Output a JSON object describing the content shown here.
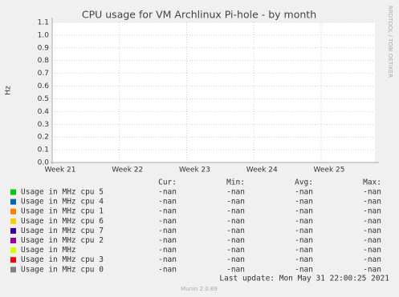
{
  "chart_data": {
    "type": "line",
    "title": "CPU usage for VM Archlinux Pi-hole - by month",
    "y_label": "Hz",
    "side_text": "RRDTOOL / TOBI OETIKER",
    "xticks": [
      "Week 21",
      "Week 22",
      "Week 23",
      "Week 24",
      "Week 25"
    ],
    "ylim": [
      0,
      1.1
    ],
    "yticks": [
      {
        "value": 0,
        "label": "0.0"
      },
      0.1,
      0.2,
      0.3,
      0.4,
      0.5,
      0.6,
      0.7,
      0.8,
      0.9,
      {
        "value": 1,
        "label": "1.0"
      },
      1.1
    ],
    "grid": true,
    "columns": [
      "Cur:",
      "Min:",
      "Avg:",
      "Max:"
    ],
    "series": [
      {
        "name": "Usage in MHz cpu 5",
        "color": "#00cc00",
        "stats": [
          "-nan",
          "-nan",
          "-nan",
          "-nan"
        ]
      },
      {
        "name": "Usage in MHz cpu 4",
        "color": "#0066b3",
        "stats": [
          "-nan",
          "-nan",
          "-nan",
          "-nan"
        ]
      },
      {
        "name": "Usage in MHz cpu 1",
        "color": "#ff8000",
        "stats": [
          "-nan",
          "-nan",
          "-nan",
          "-nan"
        ]
      },
      {
        "name": "Usage in MHz cpu 6",
        "color": "#ffcc00",
        "stats": [
          "-nan",
          "-nan",
          "-nan",
          "-nan"
        ]
      },
      {
        "name": "Usage in MHz cpu 7",
        "color": "#330099",
        "stats": [
          "-nan",
          "-nan",
          "-nan",
          "-nan"
        ]
      },
      {
        "name": "Usage in MHz cpu 2",
        "color": "#990099",
        "stats": [
          "-nan",
          "-nan",
          "-nan",
          "-nan"
        ]
      },
      {
        "name": "Usage in MHz",
        "color": "#ccff00",
        "stats": [
          "-nan",
          "-nan",
          "-nan",
          "-nan"
        ]
      },
      {
        "name": "Usage in MHz cpu 3",
        "color": "#ff0000",
        "stats": [
          "-nan",
          "-nan",
          "-nan",
          "-nan"
        ]
      },
      {
        "name": "Usage in MHz cpu 0",
        "color": "#808080",
        "stats": [
          "-nan",
          "-nan",
          "-nan",
          "-nan"
        ]
      }
    ],
    "last_update": "Last update: Mon May 31 22:00:25 2021",
    "footer": "Munin 2.0.69"
  }
}
